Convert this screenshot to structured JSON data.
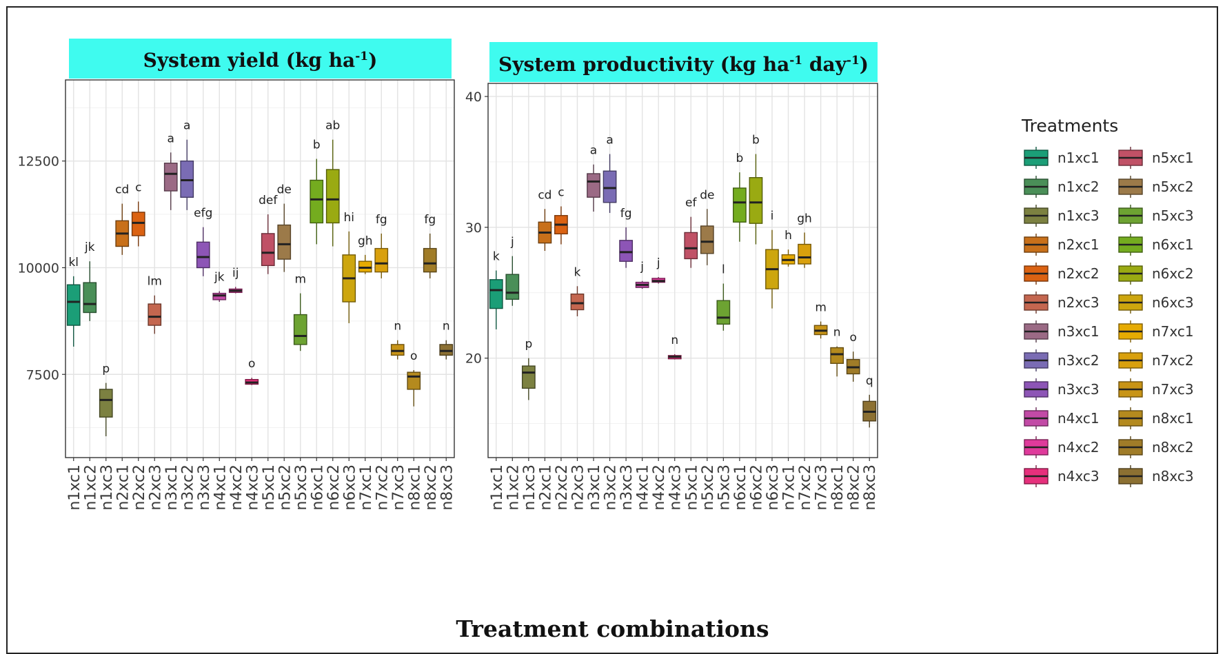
{
  "figure": {
    "x_axis_title": "Treatment combinations",
    "legend_title": "Treatments"
  },
  "chart_data": [
    {
      "type": "box",
      "title_main": "System yield (kg ha",
      "title_sup1": "-1",
      "title_end": ")",
      "ylim": [
        5550,
        14400
      ],
      "yticks": [
        7500,
        10000,
        12500
      ],
      "grid": true,
      "categories": [
        "n1xc1",
        "n1xc2",
        "n1xc3",
        "n2xc1",
        "n2xc2",
        "n2xc3",
        "n3xc1",
        "n3xc2",
        "n3xc3",
        "n4xc1",
        "n4xc2",
        "n4xc3",
        "n5xc1",
        "n5xc2",
        "n5xc3",
        "n6xc1",
        "n6xc2",
        "n6xc3",
        "n7xc1",
        "n7xc2",
        "n7xc3",
        "n8xc1",
        "n8xc2",
        "n8xc3"
      ],
      "boxes": [
        {
          "min": 8150,
          "q1": 8650,
          "median": 9200,
          "q3": 9600,
          "max": 9800,
          "label": "kl"
        },
        {
          "min": 8750,
          "q1": 8950,
          "median": 9150,
          "q3": 9650,
          "max": 10150,
          "label": "jk"
        },
        {
          "min": 6050,
          "q1": 6500,
          "median": 6900,
          "q3": 7150,
          "max": 7300,
          "label": "p"
        },
        {
          "min": 10300,
          "q1": 10500,
          "median": 10800,
          "q3": 11100,
          "max": 11500,
          "label": "cd"
        },
        {
          "min": 10500,
          "q1": 10750,
          "median": 11050,
          "q3": 11300,
          "max": 11550,
          "label": "c"
        },
        {
          "min": 8450,
          "q1": 8650,
          "median": 8850,
          "q3": 9150,
          "max": 9350,
          "label": "lm"
        },
        {
          "min": 11350,
          "q1": 11800,
          "median": 12200,
          "q3": 12450,
          "max": 12700,
          "label": "a"
        },
        {
          "min": 11350,
          "q1": 11650,
          "median": 12050,
          "q3": 12500,
          "max": 13000,
          "label": "a"
        },
        {
          "min": 9800,
          "q1": 10000,
          "median": 10250,
          "q3": 10600,
          "max": 10950,
          "label": "efg"
        },
        {
          "min": 9200,
          "q1": 9250,
          "median": 9350,
          "q3": 9400,
          "max": 9450,
          "label": "jk"
        },
        {
          "min": 9400,
          "q1": 9420,
          "median": 9460,
          "q3": 9500,
          "max": 9550,
          "label": "ij"
        },
        {
          "min": 7250,
          "q1": 7270,
          "median": 7310,
          "q3": 7380,
          "max": 7420,
          "label": "o"
        },
        {
          "min": 9850,
          "q1": 10050,
          "median": 10350,
          "q3": 10800,
          "max": 11250,
          "label": "def"
        },
        {
          "min": 9900,
          "q1": 10200,
          "median": 10550,
          "q3": 11000,
          "max": 11500,
          "label": "de"
        },
        {
          "min": 8050,
          "q1": 8200,
          "median": 8400,
          "q3": 8900,
          "max": 9400,
          "label": "m"
        },
        {
          "min": 10550,
          "q1": 11050,
          "median": 11600,
          "q3": 12050,
          "max": 12550,
          "label": "b"
        },
        {
          "min": 10500,
          "q1": 11050,
          "median": 11600,
          "q3": 12300,
          "max": 13000,
          "label": "ab"
        },
        {
          "min": 8700,
          "q1": 9200,
          "median": 9750,
          "q3": 10300,
          "max": 10850,
          "label": "hi"
        },
        {
          "min": 9850,
          "q1": 9900,
          "median": 10000,
          "q3": 10150,
          "max": 10300,
          "label": "gh"
        },
        {
          "min": 9750,
          "q1": 9900,
          "median": 10100,
          "q3": 10450,
          "max": 10800,
          "label": "fg"
        },
        {
          "min": 7850,
          "q1": 7950,
          "median": 8050,
          "q3": 8200,
          "max": 8300,
          "label": "n"
        },
        {
          "min": 6750,
          "q1": 7150,
          "median": 7450,
          "q3": 7550,
          "max": 7600,
          "label": "o"
        },
        {
          "min": 9750,
          "q1": 9900,
          "median": 10100,
          "q3": 10450,
          "max": 10800,
          "label": "fg"
        },
        {
          "min": 7850,
          "q1": 7950,
          "median": 8050,
          "q3": 8200,
          "max": 8300,
          "label": "n"
        }
      ]
    },
    {
      "type": "box",
      "title_main": "System productivity (kg ha",
      "title_sup1": "-1",
      "title_mid": " day",
      "title_sup2": "-1",
      "title_end": ")",
      "ylim": [
        12.4,
        41.0
      ],
      "yticks": [
        20,
        30,
        40
      ],
      "grid": true,
      "categories": [
        "n1xc1",
        "n1xc2",
        "n1xc3",
        "n2xc1",
        "n2xc2",
        "n2xc3",
        "n3xc1",
        "n3xc2",
        "n3xc3",
        "n4xc1",
        "n4xc2",
        "n4xc3",
        "n5xc1",
        "n5xc2",
        "n5xc3",
        "n6xc1",
        "n6xc2",
        "n6xc3",
        "n7xc1",
        "n7xc2",
        "n7xc3",
        "n8xc1",
        "n8xc2",
        "n8xc3"
      ],
      "boxes": [
        {
          "min": 22.2,
          "q1": 23.8,
          "median": 25.2,
          "q3": 26.0,
          "max": 26.7,
          "label": "k"
        },
        {
          "min": 24.0,
          "q1": 24.5,
          "median": 25.0,
          "q3": 26.4,
          "max": 27.8,
          "label": "j"
        },
        {
          "min": 16.8,
          "q1": 17.7,
          "median": 18.9,
          "q3": 19.4,
          "max": 20.0,
          "label": "p"
        },
        {
          "min": 28.2,
          "q1": 28.8,
          "median": 29.6,
          "q3": 30.4,
          "max": 31.4,
          "label": "cd"
        },
        {
          "min": 28.7,
          "q1": 29.5,
          "median": 30.2,
          "q3": 30.9,
          "max": 31.6,
          "label": "c"
        },
        {
          "min": 23.2,
          "q1": 23.7,
          "median": 24.2,
          "q3": 24.9,
          "max": 25.5,
          "label": "k"
        },
        {
          "min": 31.2,
          "q1": 32.3,
          "median": 33.5,
          "q3": 34.1,
          "max": 34.8,
          "label": "a"
        },
        {
          "min": 31.1,
          "q1": 31.9,
          "median": 33.0,
          "q3": 34.3,
          "max": 35.6,
          "label": "a"
        },
        {
          "min": 26.9,
          "q1": 27.4,
          "median": 28.1,
          "q3": 29.0,
          "max": 30.0,
          "label": "fg"
        },
        {
          "min": 25.3,
          "q1": 25.4,
          "median": 25.6,
          "q3": 25.8,
          "max": 25.9,
          "label": "j"
        },
        {
          "min": 25.7,
          "q1": 25.8,
          "median": 25.9,
          "q3": 26.1,
          "max": 26.2,
          "label": "j"
        },
        {
          "min": 19.9,
          "q1": 19.95,
          "median": 20.1,
          "q3": 20.2,
          "max": 20.3,
          "label": "n"
        },
        {
          "min": 26.9,
          "q1": 27.6,
          "median": 28.4,
          "q3": 29.6,
          "max": 30.8,
          "label": "ef"
        },
        {
          "min": 27.1,
          "q1": 28.0,
          "median": 28.9,
          "q3": 30.1,
          "max": 31.4,
          "label": "de"
        },
        {
          "min": 22.1,
          "q1": 22.6,
          "median": 23.1,
          "q3": 24.4,
          "max": 25.7,
          "label": "l"
        },
        {
          "min": 28.9,
          "q1": 30.4,
          "median": 31.9,
          "q3": 33.0,
          "max": 34.2,
          "label": "b"
        },
        {
          "min": 28.7,
          "q1": 30.3,
          "median": 31.9,
          "q3": 33.8,
          "max": 35.6,
          "label": "b"
        },
        {
          "min": 23.8,
          "q1": 25.3,
          "median": 26.8,
          "q3": 28.3,
          "max": 29.8,
          "label": "i"
        },
        {
          "min": 27.0,
          "q1": 27.2,
          "median": 27.5,
          "q3": 27.9,
          "max": 28.3,
          "label": "h"
        },
        {
          "min": 26.9,
          "q1": 27.2,
          "median": 27.7,
          "q3": 28.7,
          "max": 29.6,
          "label": "gh"
        },
        {
          "min": 21.5,
          "q1": 21.8,
          "median": 22.1,
          "q3": 22.5,
          "max": 22.8,
          "label": "m"
        },
        {
          "min": 18.6,
          "q1": 19.6,
          "median": 20.3,
          "q3": 20.8,
          "max": 20.9,
          "label": "n"
        },
        {
          "min": 18.2,
          "q1": 18.8,
          "median": 19.3,
          "q3": 19.9,
          "max": 20.5,
          "label": "o"
        },
        {
          "min": 14.7,
          "q1": 15.2,
          "median": 15.9,
          "q3": 16.7,
          "max": 17.2,
          "label": "q"
        }
      ]
    }
  ],
  "legend": {
    "placement": "right",
    "items": [
      {
        "name": "n1xc1",
        "color": "#1b9e77"
      },
      {
        "name": "n1xc2",
        "color": "#4a8f58"
      },
      {
        "name": "n1xc3",
        "color": "#7c8141"
      },
      {
        "name": "n2xc1",
        "color": "#c8701a"
      },
      {
        "name": "n2xc2",
        "color": "#db6212"
      },
      {
        "name": "n2xc3",
        "color": "#c4664f"
      },
      {
        "name": "n3xc1",
        "color": "#9b6a85"
      },
      {
        "name": "n3xc2",
        "color": "#7a6cb4"
      },
      {
        "name": "n3xc3",
        "color": "#8d55b6"
      },
      {
        "name": "n4xc1",
        "color": "#c24aa6"
      },
      {
        "name": "n4xc2",
        "color": "#df3a9b"
      },
      {
        "name": "n4xc3",
        "color": "#e6307c"
      },
      {
        "name": "n5xc1",
        "color": "#c05166"
      },
      {
        "name": "n5xc2",
        "color": "#9c7a49"
      },
      {
        "name": "n5xc3",
        "color": "#6da332"
      },
      {
        "name": "n6xc1",
        "color": "#74ac1f"
      },
      {
        "name": "n6xc2",
        "color": "#9aaa12"
      },
      {
        "name": "n6xc3",
        "color": "#cda60e"
      },
      {
        "name": "n7xc1",
        "color": "#e6ab02"
      },
      {
        "name": "n7xc2",
        "color": "#d9a00d"
      },
      {
        "name": "n7xc3",
        "color": "#c89416"
      },
      {
        "name": "n8xc1",
        "color": "#b48a1e"
      },
      {
        "name": "n8xc2",
        "color": "#a07c28"
      },
      {
        "name": "n8xc3",
        "color": "#8c7032"
      }
    ]
  },
  "colors": {
    "strip_bg": "#3ffbef",
    "panel_border": "#333333",
    "grid_major": "#e3e3e3",
    "grid_minor": "#f1f1f1",
    "text": "#3a3a3a"
  }
}
